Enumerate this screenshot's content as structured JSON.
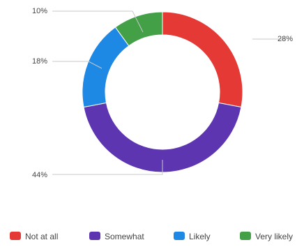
{
  "chart_data": {
    "type": "pie",
    "donut": true,
    "title": "",
    "categories": [
      "Not at all",
      "Somewhat",
      "Likely",
      "Very likely"
    ],
    "values": [
      28,
      44,
      18,
      10
    ],
    "value_labels": [
      "28%",
      "44%",
      "18%",
      "10%"
    ],
    "colors": [
      "#e53935",
      "#5e35b1",
      "#1e88e5",
      "#43a047"
    ],
    "legend_position": "bottom",
    "start_angle": "top, clockwise"
  }
}
